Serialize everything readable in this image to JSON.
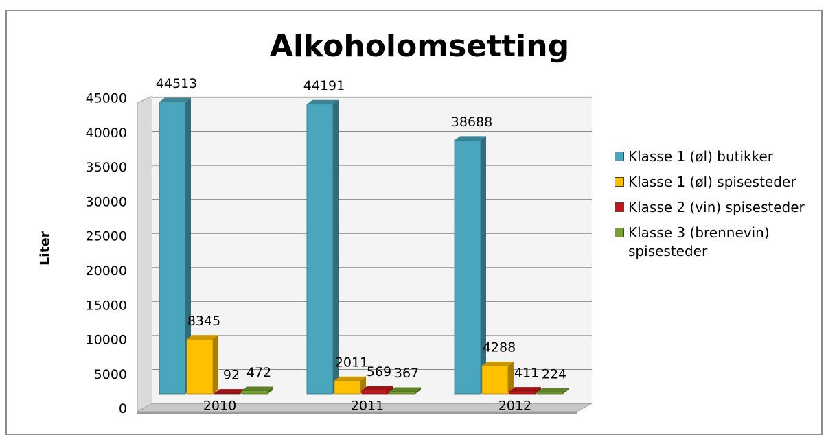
{
  "chart_data": {
    "type": "bar3d",
    "title": "Alkoholomsetting",
    "y_label": "Liter",
    "categories": [
      "2010",
      "2011",
      "2012"
    ],
    "series": [
      {
        "name": "Klasse 1 (øl) butikker",
        "color": "#4aa6bc",
        "values": [
          44513,
          44191,
          38688
        ]
      },
      {
        "name": "Klasse 1 (øl) spisesteder",
        "color": "#ffc000",
        "values": [
          8345,
          2011,
          4288
        ]
      },
      {
        "name": "Klasse 2 (vin) spisesteder",
        "color": "#c0191b",
        "values": [
          92,
          569,
          411
        ]
      },
      {
        "name": "Klasse 3 (brennevin) spisesteder",
        "color": "#76a030",
        "values": [
          472,
          367,
          224
        ]
      }
    ],
    "ylim": [
      0,
      45000
    ],
    "yticks": [
      0,
      5000,
      10000,
      15000,
      20000,
      25000,
      30000,
      35000,
      40000,
      45000
    ],
    "grid": true,
    "legend": "right"
  }
}
